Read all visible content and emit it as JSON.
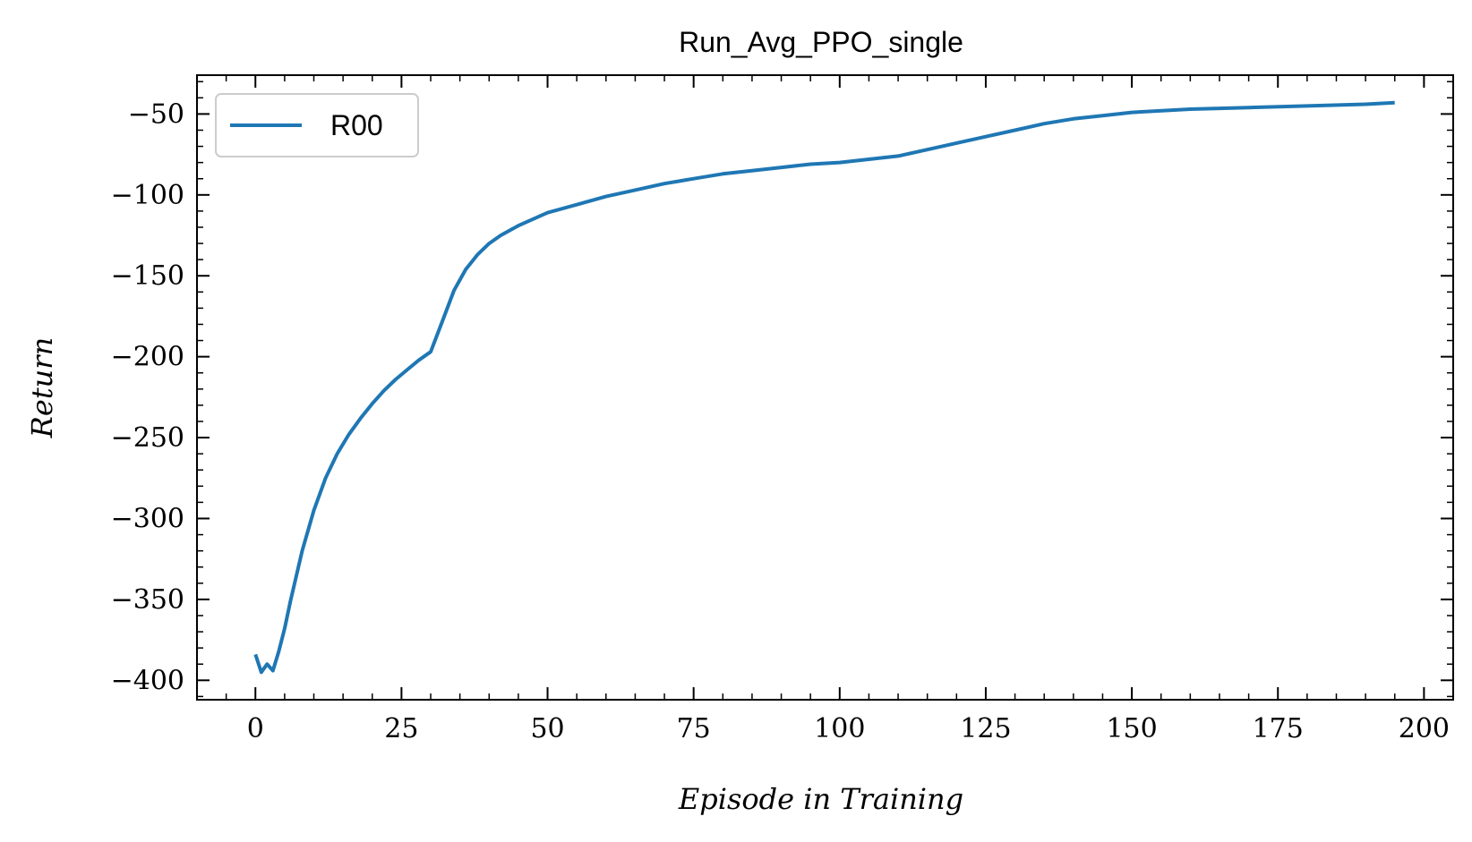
{
  "chart_data": {
    "type": "line",
    "title": "Run_Avg_PPO_single",
    "xlabel": "Episode in Training",
    "ylabel": "Return",
    "xlim": [
      -10,
      205
    ],
    "ylim": [
      -412,
      -26
    ],
    "xticks": [
      0,
      25,
      50,
      75,
      100,
      125,
      150,
      175,
      200
    ],
    "xtick_labels": [
      "0",
      "25",
      "50",
      "75",
      "100",
      "125",
      "150",
      "175",
      "200"
    ],
    "yticks": [
      -400,
      -350,
      -300,
      -250,
      -200,
      -150,
      -100,
      -50
    ],
    "ytick_labels": [
      "−400",
      "−350",
      "−300",
      "−250",
      "−200",
      "−150",
      "−100",
      "−50"
    ],
    "grid": false,
    "legend_position": "top-left",
    "series": [
      {
        "name": "R00",
        "color": "#1f77b4",
        "x": [
          0,
          1,
          2,
          3,
          4,
          5,
          6,
          8,
          10,
          12,
          14,
          16,
          18,
          20,
          22,
          24,
          26,
          28,
          30,
          32,
          34,
          36,
          38,
          40,
          42,
          45,
          50,
          55,
          60,
          65,
          70,
          75,
          80,
          85,
          90,
          95,
          100,
          105,
          110,
          115,
          120,
          125,
          130,
          135,
          140,
          145,
          150,
          160,
          170,
          180,
          190,
          195
        ],
        "y": [
          -384,
          -395,
          -390,
          -394,
          -382,
          -368,
          -351,
          -320,
          -295,
          -275,
          -260,
          -248,
          -238,
          -229,
          -221,
          -214,
          -208,
          -202,
          -197,
          -178,
          -159,
          -146,
          -137,
          -130,
          -125,
          -119,
          -111,
          -106,
          -101,
          -97,
          -93,
          -90,
          -87,
          -85,
          -83,
          -81,
          -80,
          -78,
          -76,
          -72,
          -68,
          -64,
          -60,
          -56,
          -53,
          -51,
          -49,
          -47,
          -46,
          -45,
          -44,
          -43
        ]
      }
    ]
  }
}
